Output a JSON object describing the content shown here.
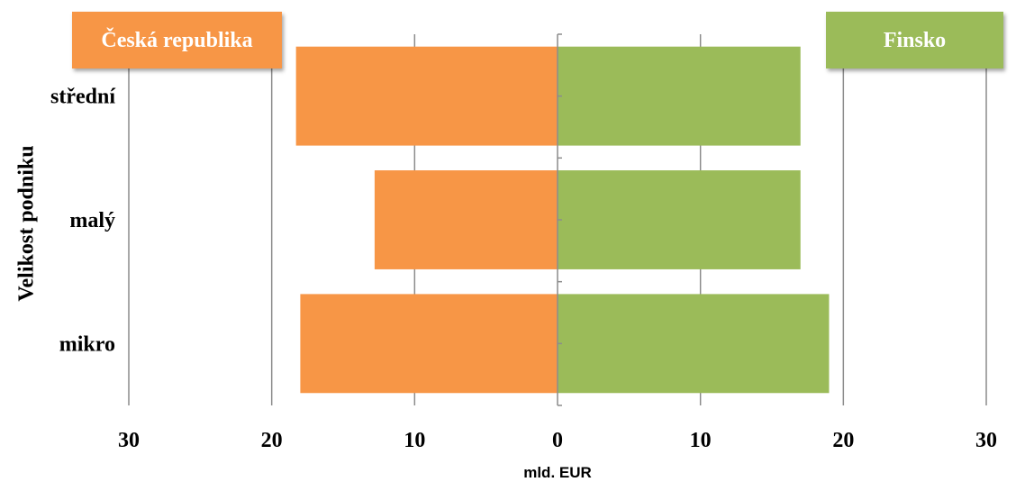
{
  "chart_data": {
    "type": "bar",
    "orientation": "horizontal",
    "layout": "back-to-back",
    "categories": [
      "střední",
      "malý",
      "mikro"
    ],
    "series": [
      {
        "name": "Česká republika",
        "side": "left",
        "color": "#f79646",
        "values": [
          18.3,
          12.8,
          18.0
        ]
      },
      {
        "name": "Finsko",
        "side": "right",
        "color": "#9bbb59",
        "values": [
          17.0,
          17.0,
          19.0
        ]
      }
    ],
    "xlabel": "mld. EUR",
    "ylabel": "Velikost podniku",
    "xlim": [
      -30,
      30
    ],
    "x_ticks": [
      -30,
      -20,
      -10,
      0,
      10,
      20,
      30
    ],
    "x_tick_labels": [
      "30",
      "20",
      "10",
      "0",
      "10",
      "20",
      "30"
    ],
    "grid": "vertical",
    "legend": "top-left and top-right labels"
  }
}
